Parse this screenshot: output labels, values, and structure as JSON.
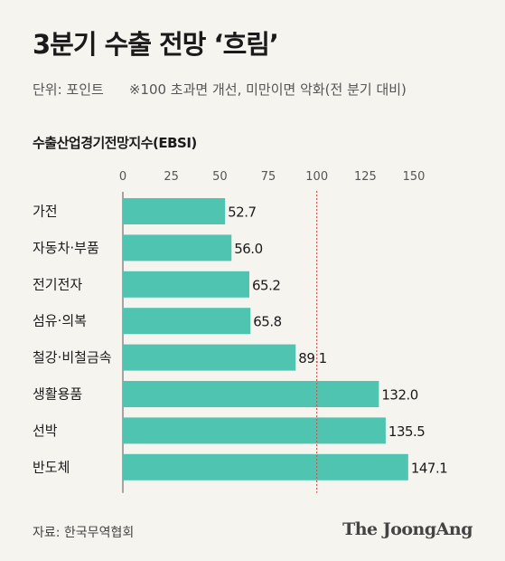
{
  "header": {
    "title": "3분기 수출 전망 ‘흐림’",
    "unit": "단위: 포인트",
    "note": "※100 초과면 개선, 미만이면 악화(전 분기 대비)"
  },
  "footer": {
    "source": "자료: 한국무역협회",
    "brand": "The JoongAng"
  },
  "colors": {
    "bar": "#4fc4b0",
    "reference_line": "#d9534f"
  },
  "chart_data": {
    "type": "bar",
    "orientation": "horizontal",
    "title": "수출산업경기전망지수(EBSI)",
    "categories": [
      "가전",
      "자동차·부품",
      "전기전자",
      "섬유·의복",
      "철강·비철금속",
      "생활용품",
      "선박",
      "반도체"
    ],
    "values": [
      52.7,
      56.0,
      65.2,
      65.8,
      89.1,
      132.0,
      135.5,
      147.1
    ],
    "value_labels": [
      "52.7",
      "56.0",
      "65.2",
      "65.8",
      "89.1",
      "132.0",
      "135.5",
      "147.1"
    ],
    "xlim": [
      0,
      150
    ],
    "x_ticks": [
      0,
      25,
      50,
      75,
      100,
      125,
      150
    ],
    "x_tick_labels": [
      "0",
      "25",
      "50",
      "75",
      "100",
      "125",
      "150"
    ],
    "reference_value": 100,
    "axis_position": "top",
    "grid": false,
    "legend": "none"
  }
}
